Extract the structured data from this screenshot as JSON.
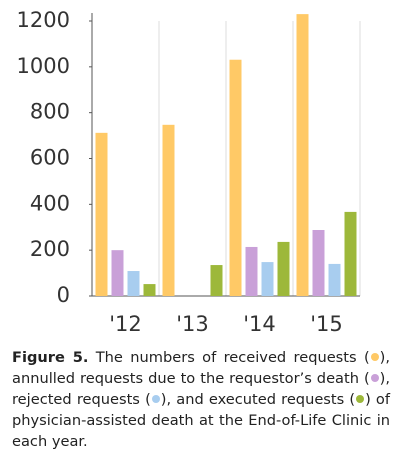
{
  "chart_data": {
    "type": "bar",
    "categories": [
      "'12",
      "'13",
      "'14",
      "'15"
    ],
    "series": [
      {
        "color": "#FFC966",
        "values": [
          712,
          747,
          1031,
          1230
        ]
      },
      {
        "color": "#C9A0D8",
        "values": [
          200,
          null,
          214,
          288
        ]
      },
      {
        "color": "#A8CDEF",
        "values": [
          109,
          null,
          148,
          140
        ]
      },
      {
        "color": "#9DB83A",
        "values": [
          52,
          135,
          236,
          367
        ]
      }
    ],
    "ylim": [
      0,
      1200
    ],
    "yticks": [
      0,
      200,
      400,
      600,
      800,
      1000,
      1200
    ],
    "grid": false
  },
  "caption": {
    "label": "Figure 5.",
    "parts": [
      "The numbers of received requests (",
      "), annulled requests due to the requestor’s death (",
      "), rejected requests (",
      "), and executed requests (",
      ") of physician-assisted death at the End-of-Life Clinic in each year."
    ]
  }
}
